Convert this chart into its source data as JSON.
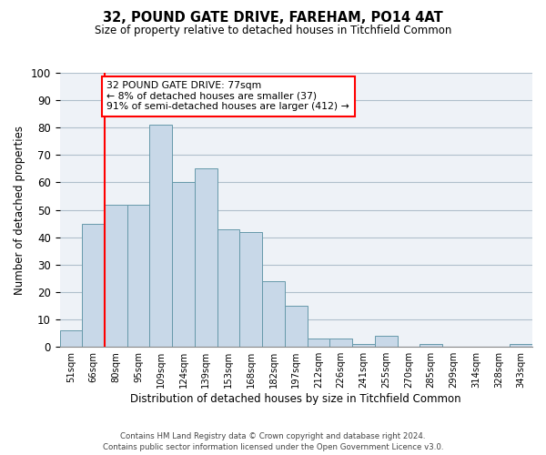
{
  "title": "32, POUND GATE DRIVE, FAREHAM, PO14 4AT",
  "subtitle": "Size of property relative to detached houses in Titchfield Common",
  "xlabel": "Distribution of detached houses by size in Titchfield Common",
  "ylabel": "Number of detached properties",
  "categories": [
    "51sqm",
    "66sqm",
    "80sqm",
    "95sqm",
    "109sqm",
    "124sqm",
    "139sqm",
    "153sqm",
    "168sqm",
    "182sqm",
    "197sqm",
    "212sqm",
    "226sqm",
    "241sqm",
    "255sqm",
    "270sqm",
    "285sqm",
    "299sqm",
    "314sqm",
    "328sqm",
    "343sqm"
  ],
  "values": [
    6,
    45,
    52,
    52,
    81,
    60,
    65,
    43,
    42,
    24,
    15,
    3,
    3,
    1,
    4,
    0,
    1,
    0,
    0,
    0,
    1
  ],
  "bar_color": "#c8d8e8",
  "bar_edge_color": "#6699aa",
  "vline_color": "red",
  "vline_x_index": 1.5,
  "annotation_text": "32 POUND GATE DRIVE: 77sqm\n← 8% of detached houses are smaller (37)\n91% of semi-detached houses are larger (412) →",
  "annotation_box_color": "white",
  "annotation_box_edge": "red",
  "ylim": [
    0,
    100
  ],
  "yticks": [
    0,
    10,
    20,
    30,
    40,
    50,
    60,
    70,
    80,
    90,
    100
  ],
  "footnote": "Contains HM Land Registry data © Crown copyright and database right 2024.\nContains public sector information licensed under the Open Government Licence v3.0.",
  "background_color": "#eef2f7",
  "grid_color": "#b0bfcc"
}
